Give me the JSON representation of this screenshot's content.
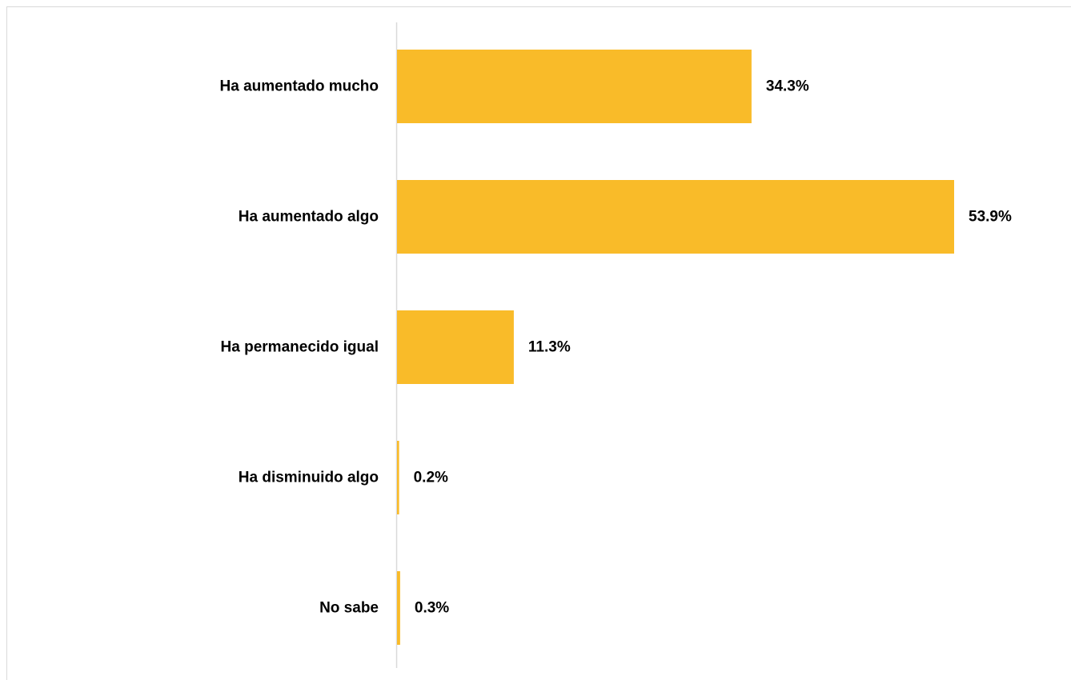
{
  "chart_data": {
    "type": "bar",
    "orientation": "horizontal",
    "title": "",
    "categories": [
      "Ha aumentado mucho",
      "Ha aumentado algo",
      "Ha permanecido igual",
      "Ha disminuido algo",
      "No sabe"
    ],
    "values": [
      34.3,
      53.9,
      11.3,
      0.2,
      0.3
    ],
    "value_labels": [
      "34.3%",
      "53.9%",
      "11.3%",
      "0.2%",
      "0.3%"
    ],
    "xlim": [
      0,
      53.9
    ],
    "grid": false,
    "bar_color": "#f9bb29",
    "axis_color": "#d9d9d9"
  }
}
